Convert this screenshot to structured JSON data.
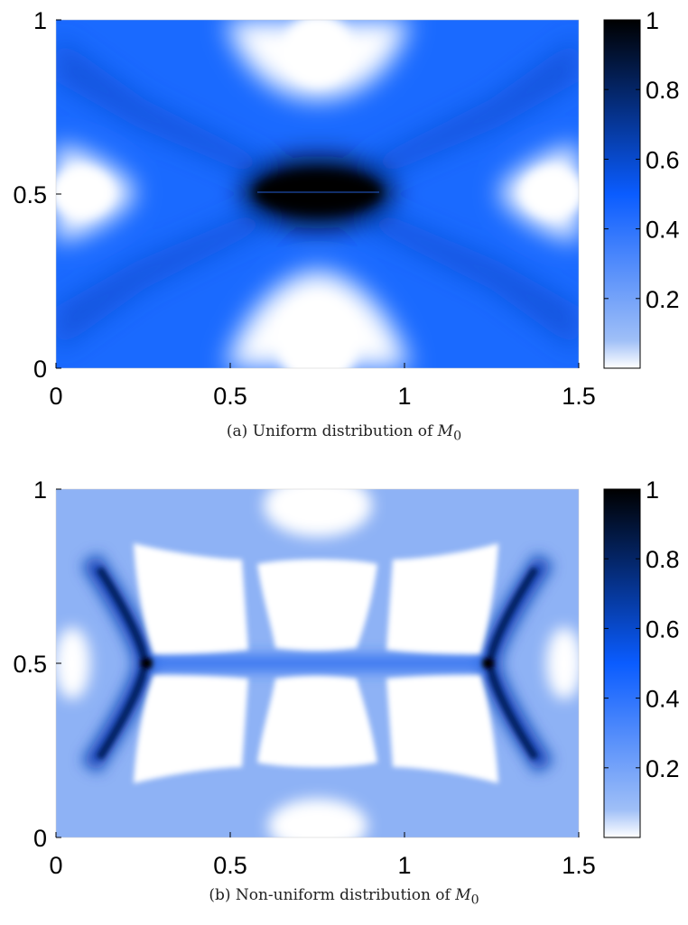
{
  "colors": {
    "dark": "#000000",
    "mid": "#0a5cff",
    "light": "#ffffff"
  },
  "chart_data": [
    {
      "type": "heatmap",
      "x_range": [
        0,
        1.5
      ],
      "y_range": [
        0,
        1
      ],
      "xticks": [
        0,
        0.5,
        1,
        1.5
      ],
      "xtick_labels": [
        "0",
        "0.5",
        "1",
        "1.5"
      ],
      "yticks": [
        0,
        0.5,
        1
      ],
      "ytick_labels": [
        "0",
        "0.5",
        "1"
      ],
      "colorbar": {
        "range": [
          0,
          1
        ],
        "ticks": [
          0.2,
          0.4,
          0.6,
          0.8,
          1
        ],
        "tick_labels": [
          "0.2",
          "0.4",
          "0.6",
          "0.8",
          "1"
        ]
      },
      "caption": "(a) Uniform distribution of M0"
    },
    {
      "type": "heatmap",
      "x_range": [
        0,
        1.5
      ],
      "y_range": [
        0,
        1
      ],
      "xticks": [
        0,
        0.5,
        1,
        1.5
      ],
      "xtick_labels": [
        "0",
        "0.5",
        "1",
        "1.5"
      ],
      "yticks": [
        0,
        0.5,
        1
      ],
      "ytick_labels": [
        "0",
        "0.5",
        "1"
      ],
      "colorbar": {
        "range": [
          0,
          1
        ],
        "ticks": [
          0.2,
          0.4,
          0.6,
          0.8,
          1
        ],
        "tick_labels": [
          "0.2",
          "0.4",
          "0.6",
          "0.8",
          "1"
        ]
      },
      "caption": "(b) Non-uniform distribution of M0"
    }
  ],
  "captions": [
    {
      "prefix": "(a) Uniform distribution of ",
      "symbol": "M",
      "subscript": "0"
    },
    {
      "prefix": "(b) Non-uniform distribution of ",
      "symbol": "M",
      "subscript": "0"
    }
  ]
}
